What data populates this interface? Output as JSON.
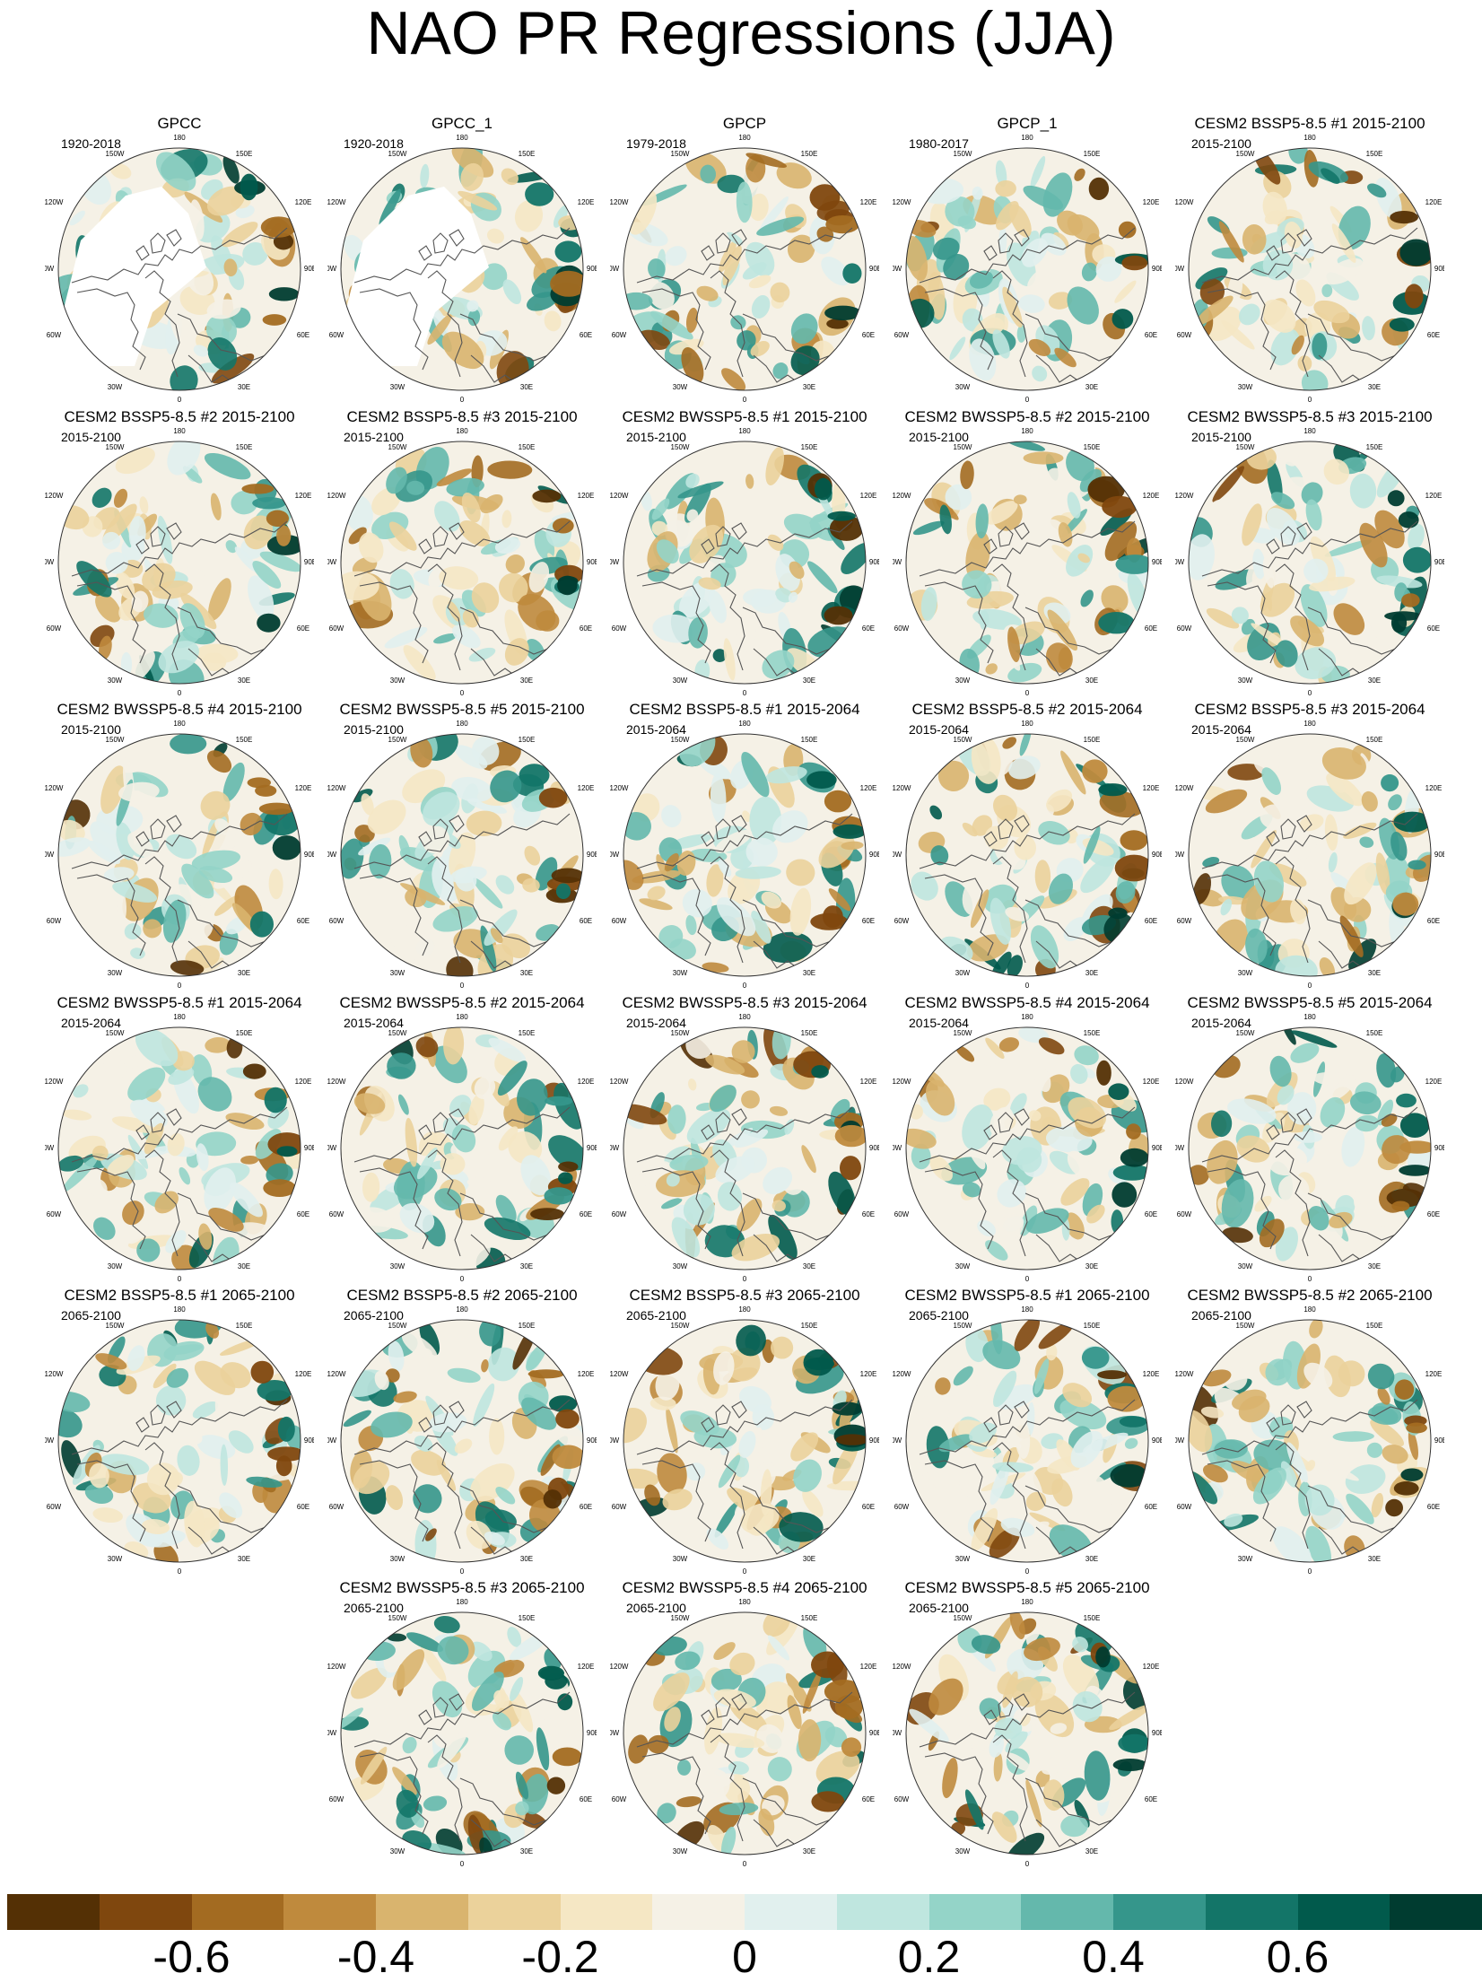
{
  "title": "NAO PR Regressions (JJA)",
  "panels": [
    {
      "title": "GPCC",
      "period": "1920-2018",
      "missing_land": true
    },
    {
      "title": "GPCC_1",
      "period": "1920-2018",
      "missing_land": true
    },
    {
      "title": "GPCP",
      "period": "1979-2018"
    },
    {
      "title": "GPCP_1",
      "period": "1980-2017"
    },
    {
      "title": "CESM2 BSSP5-8.5 #1 2015-2100",
      "period": "2015-2100"
    },
    {
      "title": "CESM2 BSSP5-8.5 #2 2015-2100",
      "period": "2015-2100"
    },
    {
      "title": "CESM2 BSSP5-8.5 #3 2015-2100",
      "period": "2015-2100"
    },
    {
      "title": "CESM2 BWSSP5-8.5 #1 2015-2100",
      "period": "2015-2100"
    },
    {
      "title": "CESM2 BWSSP5-8.5 #2 2015-2100",
      "period": "2015-2100"
    },
    {
      "title": "CESM2 BWSSP5-8.5 #3 2015-2100",
      "period": "2015-2100"
    },
    {
      "title": "CESM2 BWSSP5-8.5 #4 2015-2100",
      "period": "2015-2100"
    },
    {
      "title": "CESM2 BWSSP5-8.5 #5 2015-2100",
      "period": "2015-2100"
    },
    {
      "title": "CESM2 BSSP5-8.5 #1 2015-2064",
      "period": "2015-2064"
    },
    {
      "title": "CESM2 BSSP5-8.5 #2 2015-2064",
      "period": "2015-2064"
    },
    {
      "title": "CESM2 BSSP5-8.5 #3 2015-2064",
      "period": "2015-2064"
    },
    {
      "title": "CESM2 BWSSP5-8.5 #1 2015-2064",
      "period": "2015-2064"
    },
    {
      "title": "CESM2 BWSSP5-8.5 #2 2015-2064",
      "period": "2015-2064"
    },
    {
      "title": "CESM2 BWSSP5-8.5 #3 2015-2064",
      "period": "2015-2064"
    },
    {
      "title": "CESM2 BWSSP5-8.5 #4 2015-2064",
      "period": "2015-2064"
    },
    {
      "title": "CESM2 BWSSP5-8.5 #5 2015-2064",
      "period": "2015-2064"
    },
    {
      "title": "CESM2 BSSP5-8.5 #1 2065-2100",
      "period": "2065-2100"
    },
    {
      "title": "CESM2 BSSP5-8.5 #2 2065-2100",
      "period": "2065-2100"
    },
    {
      "title": "CESM2 BSSP5-8.5 #3 2065-2100",
      "period": "2065-2100"
    },
    {
      "title": "CESM2 BWSSP5-8.5 #1 2065-2100",
      "period": "2065-2100"
    },
    {
      "title": "CESM2 BWSSP5-8.5 #2 2065-2100",
      "period": "2065-2100"
    },
    {
      "title": "CESM2 BWSSP5-8.5 #3 2065-2100",
      "period": "2065-2100"
    },
    {
      "title": "CESM2 BWSSP5-8.5 #4 2065-2100",
      "period": "2065-2100"
    },
    {
      "title": "CESM2 BWSSP5-8.5 #5 2065-2100",
      "period": "2065-2100"
    }
  ],
  "map_labels": {
    "180": "180",
    "150W": "150W",
    "150E": "150E",
    "120W": "120W",
    "120E": "120E",
    "90W": "90W",
    "90E": "90E",
    "60W": "60W",
    "60E": "60E",
    "30W": "30W",
    "30E": "30E",
    "0": "0"
  },
  "colorbar": {
    "colors": [
      "#543005",
      "#7f470e",
      "#a36b21",
      "#bf8a3d",
      "#d9b46e",
      "#ebd29b",
      "#f5e7c4",
      "#f5f1e6",
      "#e1f0ee",
      "#bfe6df",
      "#94d4c8",
      "#64b8ac",
      "#35968b",
      "#137568",
      "#015a4c",
      "#003c30"
    ],
    "labels": [
      "-0.6",
      "-0.4",
      "-0.2",
      "0",
      "0.2",
      "0.4",
      "0.6"
    ],
    "label_values": [
      -0.6,
      -0.4,
      -0.2,
      0,
      0.2,
      0.4,
      0.6
    ],
    "range": [
      -0.8,
      0.8
    ]
  }
}
